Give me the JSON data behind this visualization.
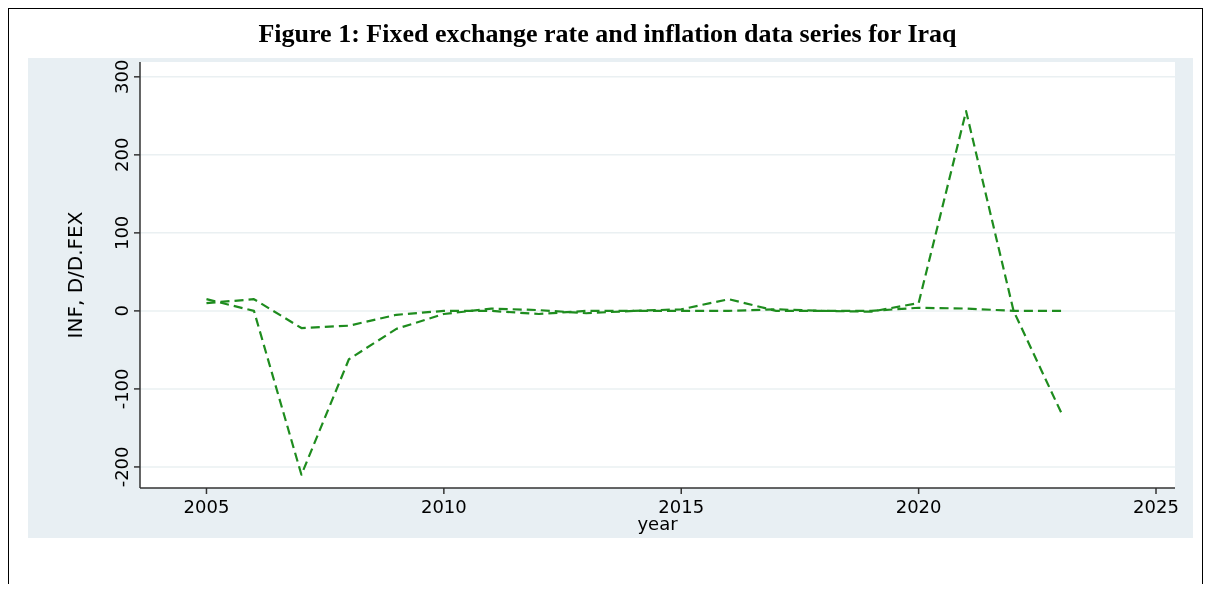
{
  "chart_data": {
    "type": "line",
    "title": "Figure 1: Fixed exchange rate and inflation data series for Iraq",
    "xlabel": "year",
    "ylabel": "INF, D/D.FEX",
    "x": [
      2005,
      2006,
      2007,
      2008,
      2009,
      2010,
      2011,
      2012,
      2013,
      2014,
      2015,
      2016,
      2017,
      2018,
      2019,
      2020,
      2021,
      2022,
      2023
    ],
    "series": [
      {
        "color": "#1e8c1e",
        "values": [
          15,
          0,
          -210,
          -62,
          -23,
          -4,
          3,
          1,
          -3,
          0,
          0,
          0,
          2,
          0,
          -1,
          10,
          256,
          0,
          -130
        ]
      },
      {
        "color": "#1e8c1e",
        "values": [
          10,
          15,
          -22,
          -19,
          -5,
          0,
          0,
          -4,
          0,
          0,
          2,
          15,
          0,
          0,
          0,
          4,
          3,
          0,
          0
        ]
      }
    ],
    "xlim": [
      2003.6,
      2025.4
    ],
    "xticks": [
      2005,
      2010,
      2015,
      2020,
      2025
    ],
    "ylim": [
      -227,
      319
    ],
    "yticks": [
      -200,
      -100,
      0,
      100,
      200,
      300
    ],
    "grid": "y",
    "marker": "none",
    "line_style": "dashed"
  }
}
